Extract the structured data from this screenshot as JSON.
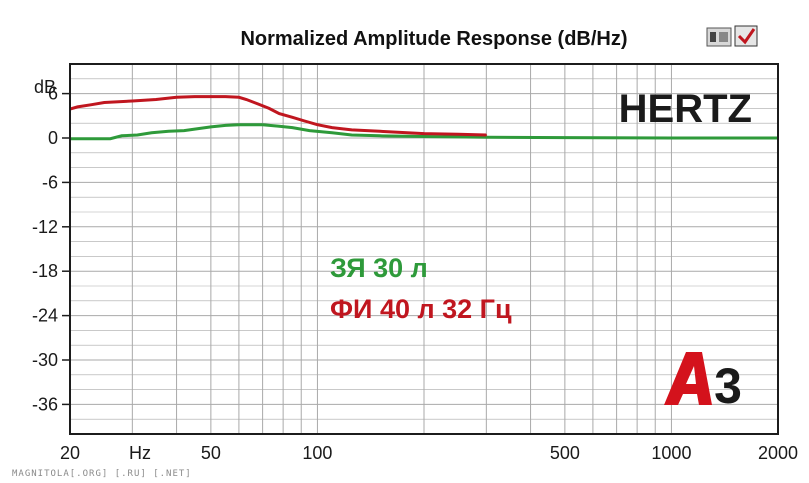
{
  "chart_data": {
    "type": "line",
    "title": "Normalized Amplitude Response (dB/Hz)",
    "ylabel": "dB",
    "xunit_label": "Hz",
    "xscale": "log",
    "xlim": [
      20,
      2000
    ],
    "ylim": [
      -40,
      10
    ],
    "x_tick_labels": [
      {
        "value": 20,
        "label": "20"
      },
      {
        "value": 50,
        "label": "50"
      },
      {
        "value": 100,
        "label": "100"
      },
      {
        "value": 500,
        "label": "500"
      },
      {
        "value": 1000,
        "label": "1000"
      },
      {
        "value": 2000,
        "label": "2000"
      }
    ],
    "y_ticks": [
      6,
      0,
      -6,
      -12,
      -18,
      -24,
      -30,
      -36
    ],
    "y_tick_labels": [
      "6",
      "0",
      "-6",
      "-12",
      "-18",
      "-24",
      "-30",
      "-36"
    ],
    "grid": true,
    "series": [
      {
        "name": "ЗЯ 30 л",
        "color": "#2e9a3a",
        "points": [
          [
            20,
            -0.1
          ],
          [
            26,
            -0.1
          ],
          [
            28,
            0.3
          ],
          [
            31,
            0.4
          ],
          [
            34,
            0.7
          ],
          [
            38,
            0.9
          ],
          [
            42,
            1.0
          ],
          [
            45,
            1.2
          ],
          [
            50,
            1.5
          ],
          [
            55,
            1.7
          ],
          [
            60,
            1.8
          ],
          [
            70,
            1.8
          ],
          [
            78,
            1.6
          ],
          [
            85,
            1.4
          ],
          [
            95,
            1.0
          ],
          [
            110,
            0.7
          ],
          [
            125,
            0.4
          ],
          [
            150,
            0.3
          ],
          [
            200,
            0.2
          ],
          [
            300,
            0.1
          ],
          [
            500,
            0.05
          ],
          [
            1000,
            0.0
          ],
          [
            2000,
            0.0
          ]
        ]
      },
      {
        "name": "ФИ 40 л 32 Гц",
        "color": "#c0161f",
        "points": [
          [
            20,
            3.9
          ],
          [
            21,
            4.2
          ],
          [
            23,
            4.5
          ],
          [
            25,
            4.8
          ],
          [
            30,
            5.0
          ],
          [
            35,
            5.2
          ],
          [
            40,
            5.5
          ],
          [
            45,
            5.6
          ],
          [
            55,
            5.6
          ],
          [
            60,
            5.5
          ],
          [
            63,
            5.2
          ],
          [
            68,
            4.6
          ],
          [
            73,
            4.0
          ],
          [
            78,
            3.3
          ],
          [
            85,
            2.8
          ],
          [
            92,
            2.3
          ],
          [
            100,
            1.8
          ],
          [
            110,
            1.4
          ],
          [
            125,
            1.1
          ],
          [
            150,
            0.9
          ],
          [
            200,
            0.6
          ],
          [
            250,
            0.5
          ],
          [
            300,
            0.4
          ]
        ]
      }
    ],
    "legend_placement": "center",
    "annotations": [
      "HERTZ",
      "A3"
    ]
  },
  "brand": "HERTZ",
  "logo_text": "A3",
  "watermark": "MAGNITOLA[.ORG] [.RU] [.NET]",
  "colors": {
    "background": "#ffffff",
    "frame": "#1c1c1c",
    "grid": "#a9a9a9",
    "green_series": "#2e9a3a",
    "red_series": "#c0161f",
    "logo_red": "#d4121c",
    "logo_dark": "#1a1a1a"
  }
}
